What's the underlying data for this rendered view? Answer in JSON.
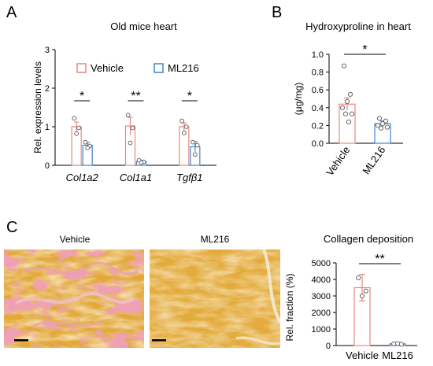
{
  "panels": {
    "A": "A",
    "B": "B",
    "C": "C"
  },
  "colors": {
    "vehicle": "#e8877e",
    "ml216": "#3f86c6",
    "point": "#666666"
  },
  "chart_data": [
    {
      "panel": "A",
      "type": "bar",
      "title": "Old mice heart",
      "ylabel": "Rel. expression levels",
      "ylim": [
        0,
        3
      ],
      "yticks": [
        "0",
        "1",
        "2",
        "3"
      ],
      "categories": [
        "Col1a2",
        "Col1a1",
        "Tgfβ1"
      ],
      "legend": [
        "Vehicle",
        "ML216"
      ],
      "legend_position": "top",
      "series": [
        {
          "name": "Vehicle",
          "values": [
            1.0,
            1.02,
            1.0
          ],
          "errors": [
            0.12,
            0.22,
            0.1
          ],
          "points": [
            [
              1.22,
              0.97,
              0.82
            ],
            [
              1.3,
              0.97,
              0.58
            ],
            [
              1.15,
              1.0,
              0.84
            ]
          ]
        },
        {
          "name": "ML216",
          "values": [
            0.52,
            0.1,
            0.48
          ],
          "errors": [
            0.07,
            0.03,
            0.13
          ],
          "points": [
            [
              0.6,
              0.5,
              0.45
            ],
            [
              0.13,
              0.09,
              0.07
            ],
            [
              0.6,
              0.52,
              0.28
            ]
          ]
        }
      ],
      "significance": [
        "*",
        "**",
        "*"
      ]
    },
    {
      "panel": "B",
      "type": "bar",
      "title": "Hydroxyproline in heart",
      "ylabel": "(μg/mg)",
      "ylim": [
        0,
        1.0
      ],
      "yticks": [
        "0.0",
        "0.2",
        "0.4",
        "0.6",
        "0.8",
        "1.0"
      ],
      "categories": [
        "Vehicle",
        "ML216"
      ],
      "values": [
        0.44,
        0.22
      ],
      "errors": [
        0.07,
        0.03
      ],
      "points": [
        [
          0.87,
          0.55,
          0.47,
          0.4,
          0.33,
          0.33,
          0.24
        ],
        [
          0.28,
          0.25,
          0.22,
          0.2,
          0.18,
          0.17
        ]
      ],
      "significance": "*"
    },
    {
      "panel": "C",
      "type": "bar",
      "title": "Collagen deposition",
      "ylabel": "Rel. fraction (%)",
      "ylim": [
        0,
        5000
      ],
      "yticks": [
        "0",
        "1000",
        "2000",
        "3000",
        "4000",
        "5000"
      ],
      "categories": [
        "Vehicle",
        "ML216"
      ],
      "values": [
        3500,
        100
      ],
      "errors": [
        800,
        40
      ],
      "points": [
        [
          4100,
          3300,
          3000
        ],
        [
          100,
          80,
          120
        ]
      ],
      "significance": "**"
    }
  ],
  "images": {
    "vehicle_label": "Vehicle",
    "ml216_label": "ML216"
  }
}
